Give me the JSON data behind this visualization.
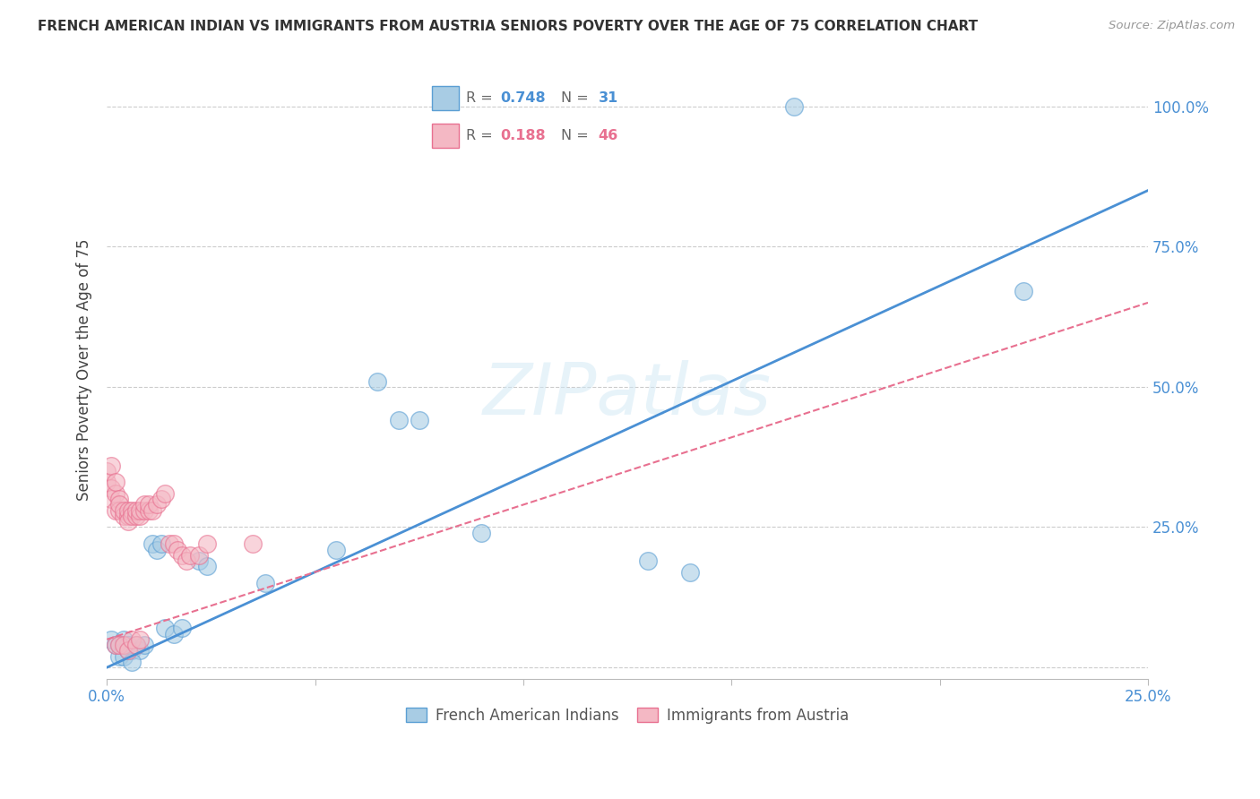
{
  "title": "FRENCH AMERICAN INDIAN VS IMMIGRANTS FROM AUSTRIA SENIORS POVERTY OVER THE AGE OF 75 CORRELATION CHART",
  "source": "Source: ZipAtlas.com",
  "ylabel": "Seniors Poverty Over the Age of 75",
  "xlim": [
    0,
    0.25
  ],
  "ylim": [
    -0.02,
    1.08
  ],
  "xticks": [
    0.0,
    0.05,
    0.1,
    0.15,
    0.2,
    0.25
  ],
  "yticks": [
    0.0,
    0.25,
    0.5,
    0.75,
    1.0
  ],
  "xtick_labels": [
    "0.0%",
    "",
    "",
    "",
    "",
    "25.0%"
  ],
  "ytick_labels_right": [
    "",
    "25.0%",
    "50.0%",
    "75.0%",
    "100.0%"
  ],
  "blue_R": 0.748,
  "blue_N": 31,
  "pink_R": 0.188,
  "pink_N": 46,
  "blue_color": "#a8cce4",
  "pink_color": "#f4b8c4",
  "blue_edge_color": "#5b9fd4",
  "pink_edge_color": "#e87090",
  "blue_line_color": "#4a90d4",
  "pink_line_color": "#e87090",
  "watermark": "ZIPatlas",
  "legend_label_blue": "French American Indians",
  "legend_label_pink": "Immigrants from Austria",
  "blue_line_x0": 0.0,
  "blue_line_y0": 0.0,
  "blue_line_x1": 0.25,
  "blue_line_y1": 0.85,
  "pink_line_x0": 0.0,
  "pink_line_y0": 0.05,
  "pink_line_x1": 0.25,
  "pink_line_y1": 0.65,
  "blue_x": [
    0.001,
    0.002,
    0.003,
    0.004,
    0.005,
    0.006,
    0.007,
    0.008,
    0.009,
    0.011,
    0.012,
    0.013,
    0.014,
    0.016,
    0.018,
    0.022,
    0.024,
    0.038,
    0.055,
    0.065,
    0.07,
    0.075,
    0.09,
    0.13,
    0.14,
    0.165,
    0.22,
    0.003,
    0.004,
    0.005,
    0.006
  ],
  "blue_y": [
    0.05,
    0.04,
    0.04,
    0.05,
    0.04,
    0.03,
    0.04,
    0.03,
    0.04,
    0.22,
    0.21,
    0.22,
    0.07,
    0.06,
    0.07,
    0.19,
    0.18,
    0.15,
    0.21,
    0.51,
    0.44,
    0.44,
    0.24,
    0.19,
    0.17,
    1.0,
    0.67,
    0.02,
    0.02,
    0.03,
    0.01
  ],
  "pink_x": [
    0.0,
    0.0,
    0.001,
    0.001,
    0.001,
    0.002,
    0.002,
    0.002,
    0.003,
    0.003,
    0.003,
    0.004,
    0.004,
    0.005,
    0.005,
    0.005,
    0.006,
    0.006,
    0.007,
    0.007,
    0.008,
    0.008,
    0.009,
    0.009,
    0.01,
    0.01,
    0.011,
    0.012,
    0.013,
    0.014,
    0.015,
    0.016,
    0.017,
    0.018,
    0.019,
    0.02,
    0.022,
    0.024,
    0.002,
    0.003,
    0.004,
    0.005,
    0.006,
    0.007,
    0.008,
    0.035
  ],
  "pink_y": [
    0.33,
    0.35,
    0.32,
    0.3,
    0.36,
    0.31,
    0.28,
    0.33,
    0.3,
    0.28,
    0.29,
    0.27,
    0.28,
    0.27,
    0.28,
    0.26,
    0.28,
    0.27,
    0.27,
    0.28,
    0.27,
    0.28,
    0.28,
    0.29,
    0.28,
    0.29,
    0.28,
    0.29,
    0.3,
    0.31,
    0.22,
    0.22,
    0.21,
    0.2,
    0.19,
    0.2,
    0.2,
    0.22,
    0.04,
    0.04,
    0.04,
    0.03,
    0.05,
    0.04,
    0.05,
    0.22
  ]
}
